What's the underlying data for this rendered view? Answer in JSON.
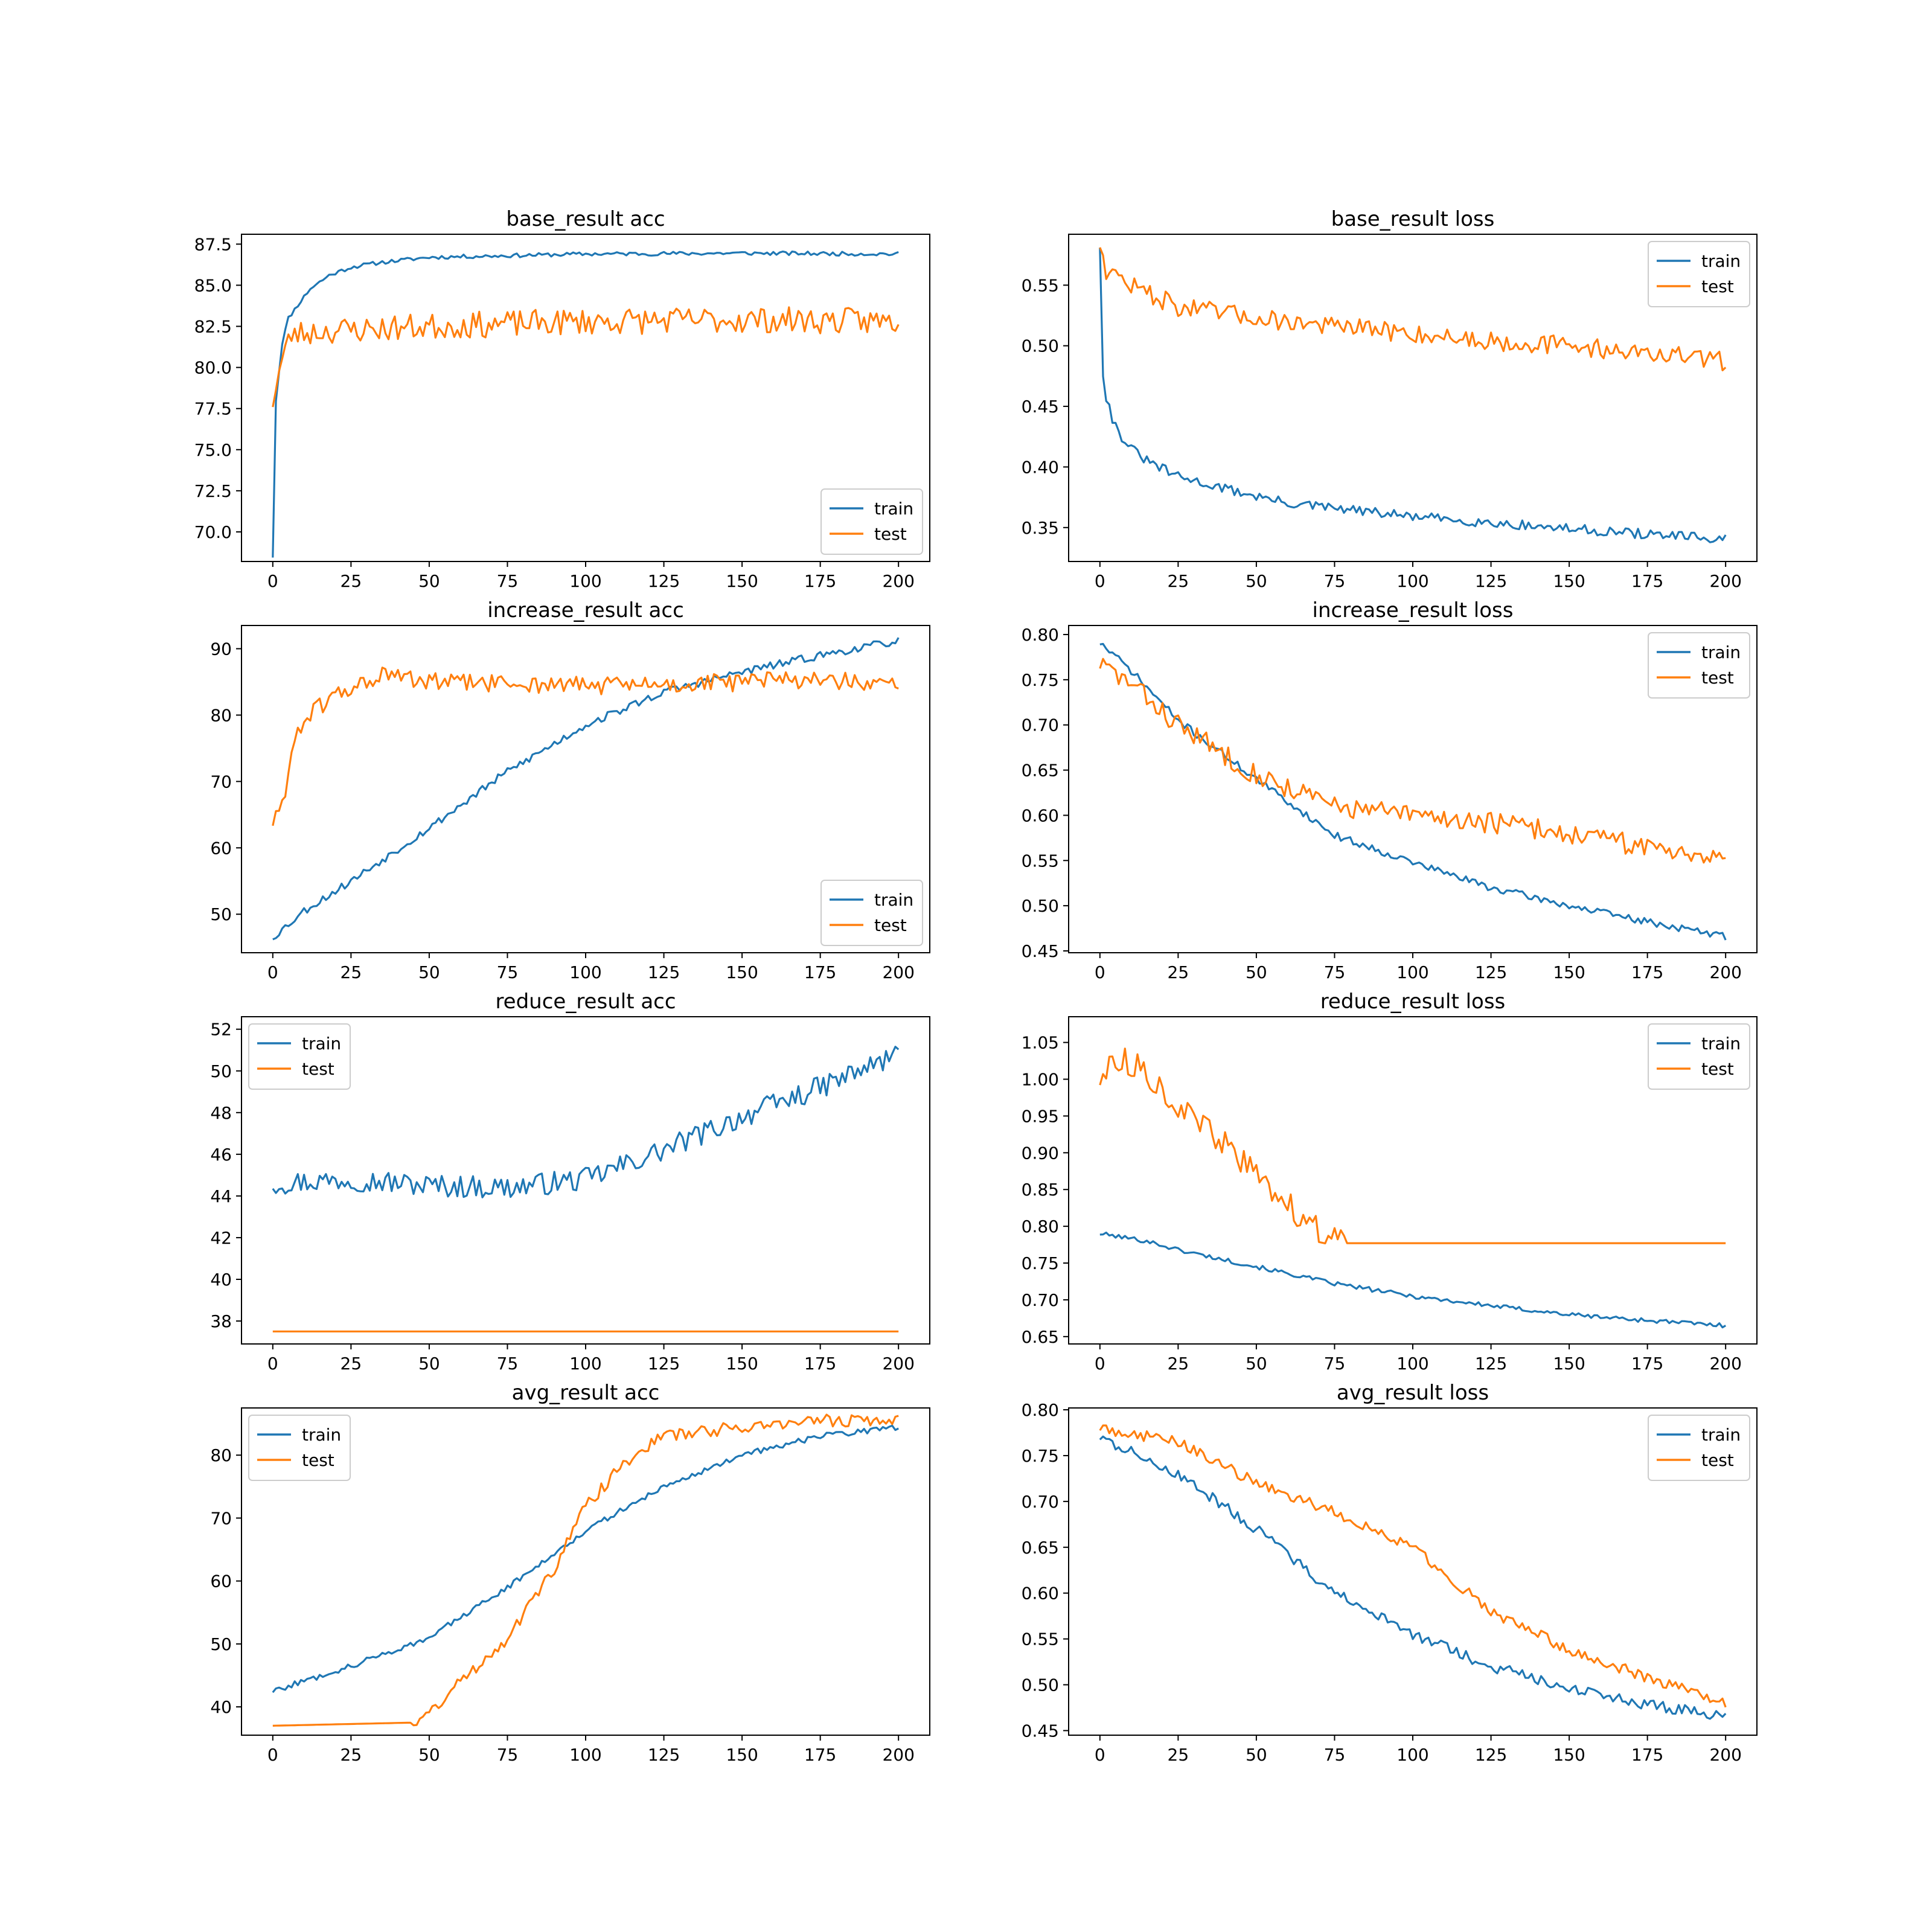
{
  "colors": {
    "train": "#1f77b4",
    "test": "#ff7f0e",
    "frame": "#000000",
    "legend_border": "#cccccc"
  },
  "chart_data": [
    {
      "type": "line",
      "title": "base_result acc",
      "xlim": [
        -10,
        210
      ],
      "ylim": [
        68.2,
        88.1
      ],
      "xticks": [
        0,
        25,
        50,
        75,
        100,
        125,
        150,
        175,
        200
      ],
      "yticks": [
        70.0,
        72.5,
        75.0,
        77.5,
        80.0,
        82.5,
        85.0,
        87.5
      ],
      "ytick_decimals": 1,
      "legend": "lower-right",
      "series": [
        {
          "name": "train",
          "noise": 0.12,
          "seed": 11,
          "points": [
            [
              0,
              68.5
            ],
            [
              1,
              78.0
            ],
            [
              3,
              81.5
            ],
            [
              5,
              83.0
            ],
            [
              8,
              83.8
            ],
            [
              12,
              84.8
            ],
            [
              18,
              85.6
            ],
            [
              25,
              86.1
            ],
            [
              35,
              86.4
            ],
            [
              50,
              86.7
            ],
            [
              75,
              86.8
            ],
            [
              100,
              86.9
            ],
            [
              150,
              86.95
            ],
            [
              200,
              86.9
            ]
          ]
        },
        {
          "name": "test",
          "noise": 0.8,
          "seed": 23,
          "points": [
            [
              0,
              78.0
            ],
            [
              3,
              80.5
            ],
            [
              6,
              82.0
            ],
            [
              15,
              82.2
            ],
            [
              50,
              82.5
            ],
            [
              100,
              82.8
            ],
            [
              150,
              82.9
            ],
            [
              200,
              82.8
            ]
          ]
        }
      ]
    },
    {
      "type": "line",
      "title": "base_result loss",
      "xlim": [
        -10,
        210
      ],
      "ylim": [
        0.322,
        0.592
      ],
      "xticks": [
        0,
        25,
        50,
        75,
        100,
        125,
        150,
        175,
        200
      ],
      "yticks": [
        0.35,
        0.4,
        0.45,
        0.5,
        0.55
      ],
      "ytick_decimals": 2,
      "legend": "upper-right",
      "series": [
        {
          "name": "train",
          "noise": 0.004,
          "seed": 31,
          "points": [
            [
              0,
              0.583
            ],
            [
              1,
              0.478
            ],
            [
              2,
              0.458
            ],
            [
              4,
              0.44
            ],
            [
              6,
              0.428
            ],
            [
              10,
              0.415
            ],
            [
              15,
              0.405
            ],
            [
              25,
              0.392
            ],
            [
              40,
              0.382
            ],
            [
              60,
              0.37
            ],
            [
              100,
              0.359
            ],
            [
              150,
              0.349
            ],
            [
              200,
              0.34
            ]
          ]
        },
        {
          "name": "test",
          "noise": 0.008,
          "seed": 47,
          "points": [
            [
              0,
              0.585
            ],
            [
              2,
              0.563
            ],
            [
              10,
              0.55
            ],
            [
              25,
              0.532
            ],
            [
              50,
              0.523
            ],
            [
              75,
              0.516
            ],
            [
              100,
              0.51
            ],
            [
              125,
              0.504
            ],
            [
              150,
              0.5
            ],
            [
              175,
              0.494
            ],
            [
              200,
              0.487
            ]
          ]
        }
      ]
    },
    {
      "type": "line",
      "title": "increase_result acc",
      "xlim": [
        -10,
        210
      ],
      "ylim": [
        44.2,
        93.5
      ],
      "xticks": [
        0,
        25,
        50,
        75,
        100,
        125,
        150,
        175,
        200
      ],
      "yticks": [
        50,
        60,
        70,
        80,
        90
      ],
      "ytick_decimals": 0,
      "legend": "lower-right",
      "series": [
        {
          "name": "train",
          "noise": 0.6,
          "seed": 53,
          "points": [
            [
              0,
              46.5
            ],
            [
              10,
              50.5
            ],
            [
              25,
              55.0
            ],
            [
              50,
              63.0
            ],
            [
              75,
              71.5
            ],
            [
              100,
              78.5
            ],
            [
              125,
              83.5
            ],
            [
              150,
              86.5
            ],
            [
              175,
              89.0
            ],
            [
              200,
              91.2
            ]
          ]
        },
        {
          "name": "test",
          "noise": 1.4,
          "seed": 61,
          "points": [
            [
              0,
              64.0
            ],
            [
              3,
              66.0
            ],
            [
              5,
              72.0
            ],
            [
              8,
              78.0
            ],
            [
              12,
              80.0
            ],
            [
              18,
              82.5
            ],
            [
              25,
              84.0
            ],
            [
              35,
              86.0
            ],
            [
              50,
              85.0
            ],
            [
              100,
              84.5
            ],
            [
              125,
              84.5
            ],
            [
              150,
              85.0
            ],
            [
              175,
              85.5
            ],
            [
              200,
              84.0
            ]
          ]
        }
      ]
    },
    {
      "type": "line",
      "title": "increase_result loss",
      "xlim": [
        -10,
        210
      ],
      "ylim": [
        0.448,
        0.81
      ],
      "xticks": [
        0,
        25,
        50,
        75,
        100,
        125,
        150,
        175,
        200
      ],
      "yticks": [
        0.45,
        0.5,
        0.55,
        0.6,
        0.65,
        0.7,
        0.75,
        0.8
      ],
      "ytick_decimals": 2,
      "legend": "upper-right",
      "series": [
        {
          "name": "train",
          "noise": 0.004,
          "seed": 71,
          "points": [
            [
              0,
              0.791
            ],
            [
              10,
              0.76
            ],
            [
              25,
              0.705
            ],
            [
              50,
              0.64
            ],
            [
              75,
              0.578
            ],
            [
              100,
              0.548
            ],
            [
              125,
              0.52
            ],
            [
              150,
              0.5
            ],
            [
              175,
              0.482
            ],
            [
              200,
              0.466
            ]
          ]
        },
        {
          "name": "test",
          "noise": 0.012,
          "seed": 83,
          "points": [
            [
              0,
              0.768
            ],
            [
              10,
              0.745
            ],
            [
              25,
              0.7
            ],
            [
              50,
              0.645
            ],
            [
              75,
              0.61
            ],
            [
              100,
              0.6
            ],
            [
              125,
              0.592
            ],
            [
              150,
              0.58
            ],
            [
              175,
              0.565
            ],
            [
              200,
              0.555
            ]
          ]
        }
      ]
    },
    {
      "type": "line",
      "title": "reduce_result acc",
      "xlim": [
        -10,
        210
      ],
      "ylim": [
        36.9,
        52.6
      ],
      "xticks": [
        0,
        25,
        50,
        75,
        100,
        125,
        150,
        175,
        200
      ],
      "yticks": [
        38,
        40,
        42,
        44,
        46,
        48,
        50,
        52
      ],
      "ytick_decimals": 0,
      "legend": "upper-left",
      "series": [
        {
          "name": "train",
          "noise": 0.55,
          "seed": 97,
          "points": [
            [
              0,
              44.6
            ],
            [
              25,
              44.8
            ],
            [
              50,
              44.5
            ],
            [
              75,
              44.4
            ],
            [
              100,
              44.8
            ],
            [
              125,
              46.2
            ],
            [
              150,
              47.8
            ],
            [
              175,
              49.2
            ],
            [
              200,
              50.8
            ]
          ]
        },
        {
          "name": "test",
          "noise": 0,
          "seed": 1,
          "points": [
            [
              0,
              37.5
            ],
            [
              200,
              37.5
            ]
          ]
        }
      ]
    },
    {
      "type": "line",
      "title": "reduce_result loss",
      "xlim": [
        -10,
        210
      ],
      "ylim": [
        0.64,
        1.085
      ],
      "xticks": [
        0,
        25,
        50,
        75,
        100,
        125,
        150,
        175,
        200
      ],
      "yticks": [
        0.65,
        0.7,
        0.75,
        0.8,
        0.85,
        0.9,
        0.95,
        1.0,
        1.05
      ],
      "ytick_decimals": 2,
      "legend": "upper-right",
      "series": [
        {
          "name": "train",
          "noise": 0.003,
          "seed": 101,
          "points": [
            [
              0,
              0.79
            ],
            [
              15,
              0.78
            ],
            [
              25,
              0.768
            ],
            [
              50,
              0.745
            ],
            [
              75,
              0.722
            ],
            [
              100,
              0.705
            ],
            [
              125,
              0.692
            ],
            [
              150,
              0.68
            ],
            [
              175,
              0.672
            ],
            [
              200,
              0.665
            ]
          ]
        },
        {
          "name": "test",
          "noise": 0.018,
          "seed": 113,
          "noise_until": 78,
          "points": [
            [
              0,
              1.0
            ],
            [
              5,
              1.03
            ],
            [
              15,
              1.01
            ],
            [
              25,
              0.96
            ],
            [
              35,
              0.93
            ],
            [
              45,
              0.89
            ],
            [
              55,
              0.85
            ],
            [
              65,
              0.81
            ],
            [
              72,
              0.79
            ],
            [
              78,
              0.777
            ],
            [
              200,
              0.777
            ]
          ]
        }
      ]
    },
    {
      "type": "line",
      "title": "avg_result acc",
      "xlim": [
        -10,
        210
      ],
      "ylim": [
        35.5,
        87.5
      ],
      "xticks": [
        0,
        25,
        50,
        75,
        100,
        125,
        150,
        175,
        200
      ],
      "yticks": [
        40,
        50,
        60,
        70,
        80
      ],
      "ytick_decimals": 0,
      "legend": "upper-left",
      "series": [
        {
          "name": "train",
          "noise": 0.45,
          "seed": 127,
          "points": [
            [
              0,
              42.5
            ],
            [
              25,
              46.5
            ],
            [
              50,
              51.0
            ],
            [
              75,
              59.0
            ],
            [
              100,
              68.0
            ],
            [
              125,
              75.0
            ],
            [
              150,
              80.0
            ],
            [
              175,
              83.0
            ],
            [
              200,
              84.5
            ]
          ]
        },
        {
          "name": "test",
          "noise": 1.0,
          "seed": 131,
          "noise_from": 45,
          "points": [
            [
              0,
              37.0
            ],
            [
              45,
              37.5
            ],
            [
              50,
              39.0
            ],
            [
              60,
              44.0
            ],
            [
              75,
              51.0
            ],
            [
              90,
              62.0
            ],
            [
              100,
              72.0
            ],
            [
              115,
              80.0
            ],
            [
              125,
              83.0
            ],
            [
              150,
              84.5
            ],
            [
              175,
              85.5
            ],
            [
              200,
              85.5
            ]
          ]
        }
      ]
    },
    {
      "type": "line",
      "title": "avg_result loss",
      "xlim": [
        -10,
        210
      ],
      "ylim": [
        0.445,
        0.802
      ],
      "xticks": [
        0,
        25,
        50,
        75,
        100,
        125,
        150,
        175,
        200
      ],
      "yticks": [
        0.45,
        0.5,
        0.55,
        0.6,
        0.65,
        0.7,
        0.75,
        0.8
      ],
      "ytick_decimals": 2,
      "legend": "upper-right",
      "series": [
        {
          "name": "train",
          "noise": 0.006,
          "seed": 137,
          "points": [
            [
              0,
              0.77
            ],
            [
              25,
              0.73
            ],
            [
              50,
              0.67
            ],
            [
              75,
              0.6
            ],
            [
              100,
              0.555
            ],
            [
              125,
              0.52
            ],
            [
              150,
              0.497
            ],
            [
              175,
              0.478
            ],
            [
              200,
              0.466
            ]
          ]
        },
        {
          "name": "test",
          "noise": 0.006,
          "seed": 149,
          "points": [
            [
              0,
              0.78
            ],
            [
              25,
              0.765
            ],
            [
              50,
              0.72
            ],
            [
              75,
              0.688
            ],
            [
              100,
              0.65
            ],
            [
              125,
              0.58
            ],
            [
              150,
              0.538
            ],
            [
              175,
              0.508
            ],
            [
              200,
              0.48
            ]
          ]
        }
      ]
    }
  ]
}
